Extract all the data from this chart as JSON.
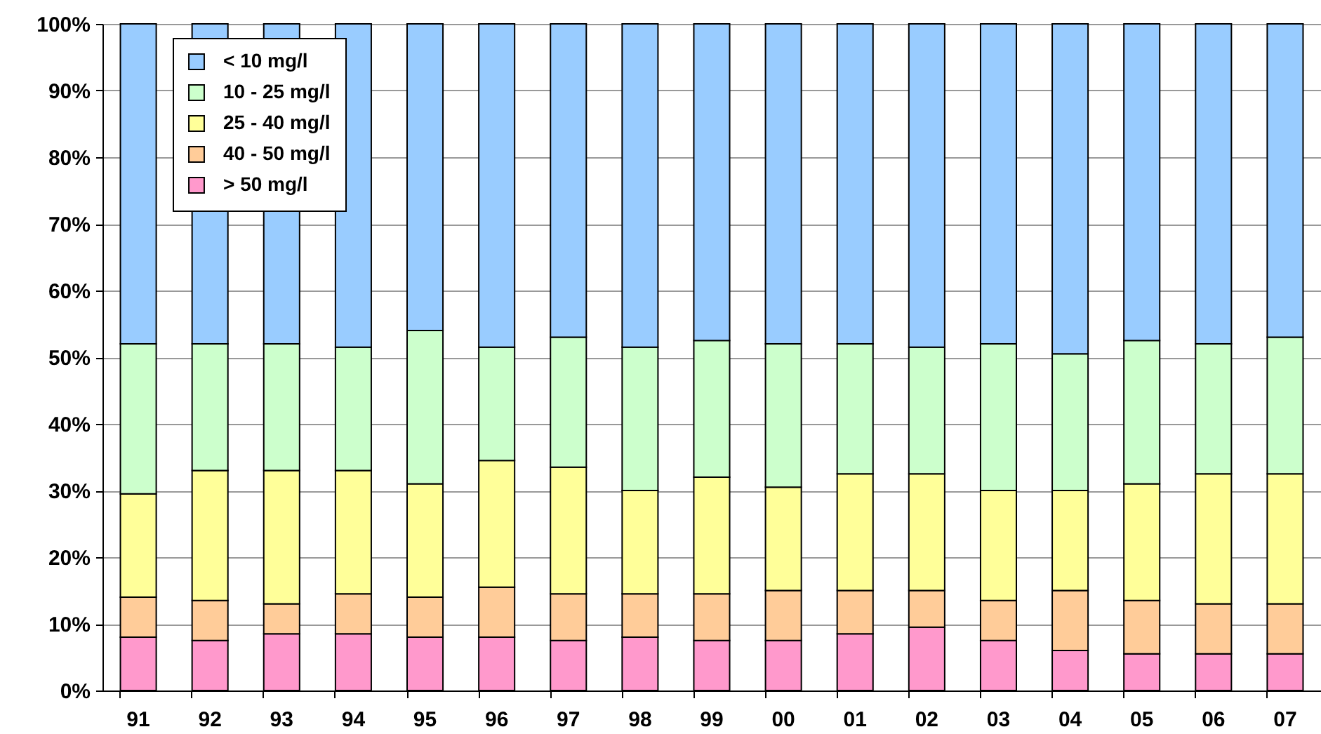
{
  "chart_data": {
    "type": "bar",
    "stacked": true,
    "categories": [
      "91",
      "92",
      "93",
      "94",
      "95",
      "96",
      "97",
      "98",
      "99",
      "00",
      "01",
      "02",
      "03",
      "04",
      "05",
      "06",
      "07"
    ],
    "series": [
      {
        "name": "> 50 mg/l",
        "color": "#ff99cc",
        "values": [
          8,
          7.5,
          8.5,
          8.5,
          8,
          8,
          7.5,
          8,
          7.5,
          7.5,
          8.5,
          9.5,
          7.5,
          6,
          5.5,
          5.5,
          5.5
        ]
      },
      {
        "name": "40 - 50 mg/l",
        "color": "#ffcc99",
        "values": [
          6,
          6,
          4.5,
          6,
          6,
          7.5,
          7,
          6.5,
          7,
          7.5,
          6.5,
          5.5,
          6,
          9,
          8,
          7.5,
          7.5
        ]
      },
      {
        "name": "25 - 40 mg/l",
        "color": "#ffff99",
        "values": [
          15.5,
          19.5,
          20,
          18.5,
          17,
          19,
          19,
          15.5,
          17.5,
          15.5,
          17.5,
          17.5,
          16.5,
          15,
          17.5,
          19.5,
          19.5
        ]
      },
      {
        "name": "10 - 25 mg/l",
        "color": "#ccffcc",
        "values": [
          22.5,
          19,
          19,
          18.5,
          23,
          17,
          19.5,
          21.5,
          20.5,
          21.5,
          19.5,
          19,
          22,
          20.5,
          21.5,
          19.5,
          20.5
        ]
      },
      {
        "name": "< 10 mg/l",
        "color": "#99ccff",
        "values": [
          48,
          48,
          48,
          48.5,
          46,
          48.5,
          47,
          48.5,
          47.5,
          48,
          48,
          48.5,
          48,
          49.5,
          47.5,
          48,
          47
        ]
      }
    ],
    "ylim": [
      0,
      100
    ],
    "yticks": [
      {
        "value": 0,
        "label": "0%"
      },
      {
        "value": 10,
        "label": "10%"
      },
      {
        "value": 20,
        "label": "20%"
      },
      {
        "value": 30,
        "label": "30%"
      },
      {
        "value": 40,
        "label": "40%"
      },
      {
        "value": 50,
        "label": "50%"
      },
      {
        "value": 60,
        "label": "60%"
      },
      {
        "value": 70,
        "label": "70%"
      },
      {
        "value": 80,
        "label": "80%"
      },
      {
        "value": 90,
        "label": "90%"
      },
      {
        "value": 100,
        "label": "100%"
      }
    ],
    "grid": "y",
    "legend": "top left"
  }
}
